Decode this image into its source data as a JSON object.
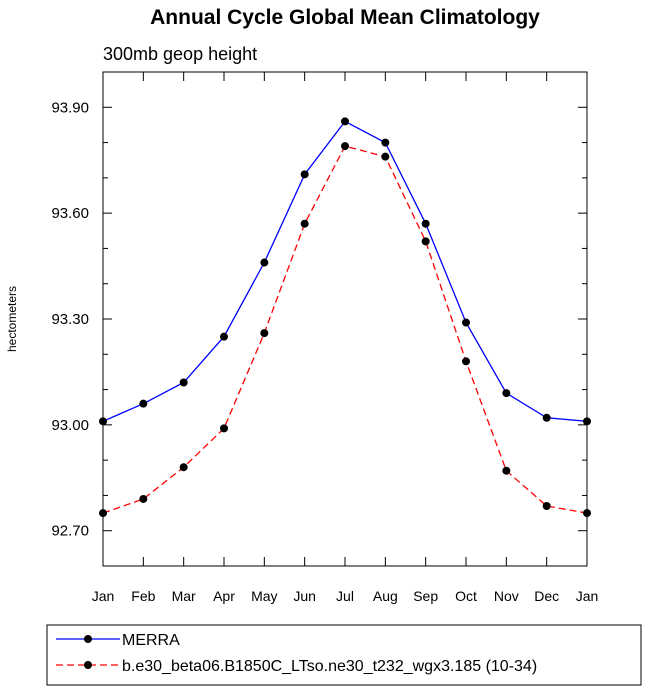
{
  "chart_data": {
    "type": "line",
    "title": "Annual Cycle Global Mean Climatology",
    "subtitle": "300mb geop height",
    "xlabel": "",
    "ylabel": "hectometers",
    "categories": [
      "Jan",
      "Feb",
      "Mar",
      "Apr",
      "May",
      "Jun",
      "Jul",
      "Aug",
      "Sep",
      "Oct",
      "Nov",
      "Dec",
      "Jan"
    ],
    "ylim": [
      92.6,
      94.0
    ],
    "yticks": [
      "92.70",
      "93.00",
      "93.30",
      "93.60",
      "93.90"
    ],
    "grid": false,
    "legend_position": "bottom",
    "series": [
      {
        "name": "MERRA",
        "color": "#0000ff",
        "line_style": "solid",
        "values": [
          93.01,
          93.06,
          93.12,
          93.25,
          93.46,
          93.71,
          93.86,
          93.8,
          93.57,
          93.29,
          93.09,
          93.02,
          93.01
        ]
      },
      {
        "name": "b.e30_beta06.B1850C_LTso.ne30_t232_wgx3.185 (10-34)",
        "color": "#ff0000",
        "line_style": "dashed",
        "values": [
          92.75,
          92.79,
          92.88,
          92.99,
          93.26,
          93.57,
          93.79,
          93.76,
          93.52,
          93.18,
          92.87,
          92.77,
          92.75
        ]
      }
    ]
  }
}
